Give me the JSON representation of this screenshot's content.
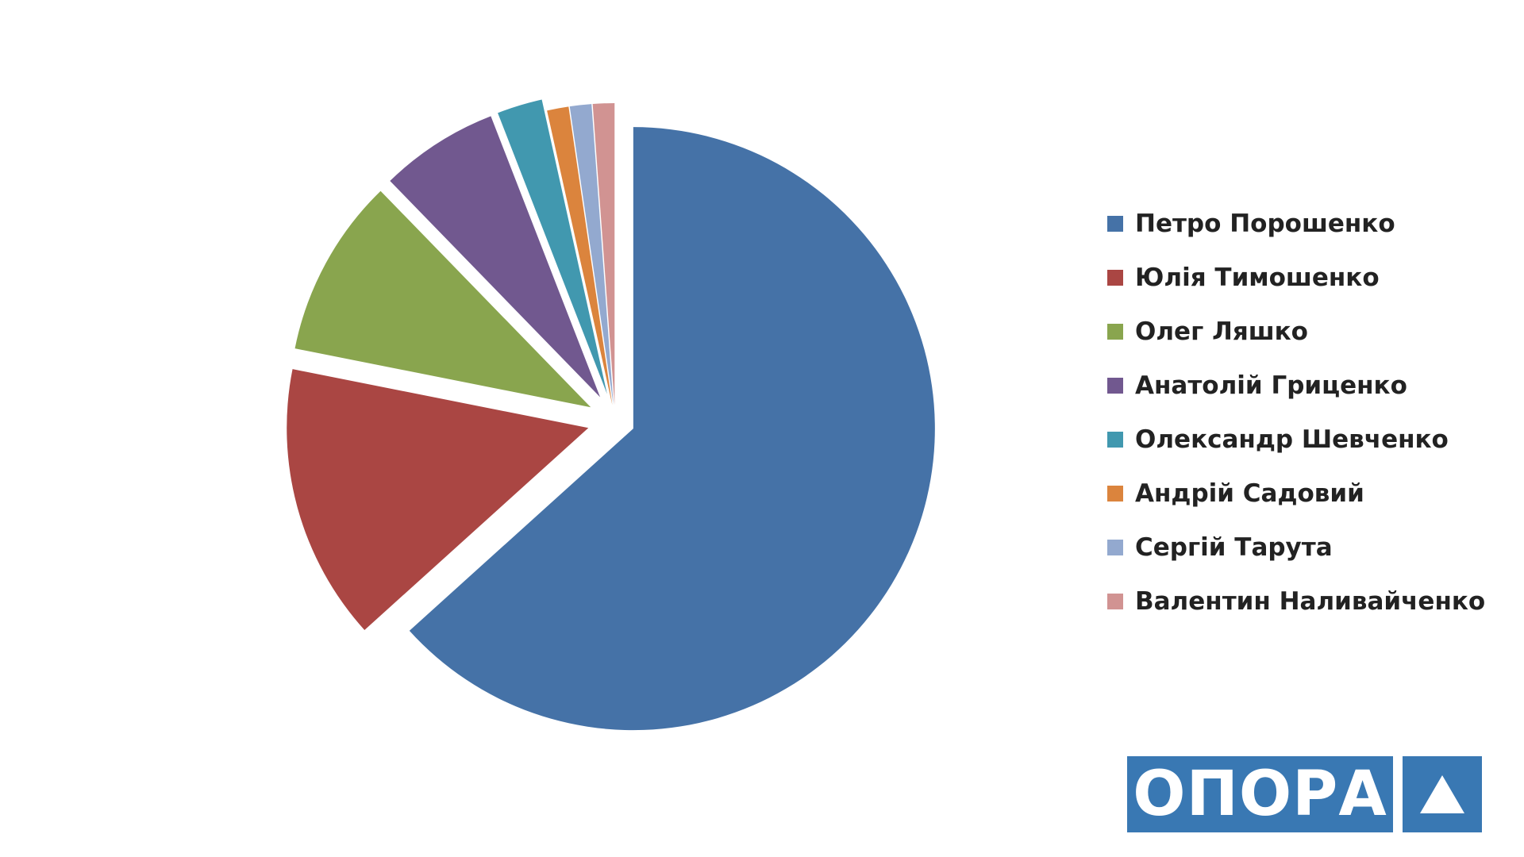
{
  "chart_data": {
    "type": "pie",
    "exploded": true,
    "start_angle": "12 o'clock, clockwise",
    "legend_position": "right",
    "labels": [
      "Петро Порошенко",
      "Юлія Тимошенко",
      "Олег Ляшко",
      "Анатолій Гриценко",
      "Олександр Шевченко",
      "Андрій Садовий",
      "Сергій Тарута",
      "Валентин Наливайченко"
    ],
    "values": [
      54.7,
      12.8,
      8.3,
      5.5,
      2.1,
      1.0,
      1.0,
      1.0
    ],
    "colors": [
      "#4572a7",
      "#aa4643",
      "#89a54e",
      "#71588f",
      "#4198af",
      "#db843d",
      "#93a9cf",
      "#d19392"
    ]
  },
  "logo": {
    "text": "ОПОРА",
    "mark_icon": "triangle-icon"
  }
}
